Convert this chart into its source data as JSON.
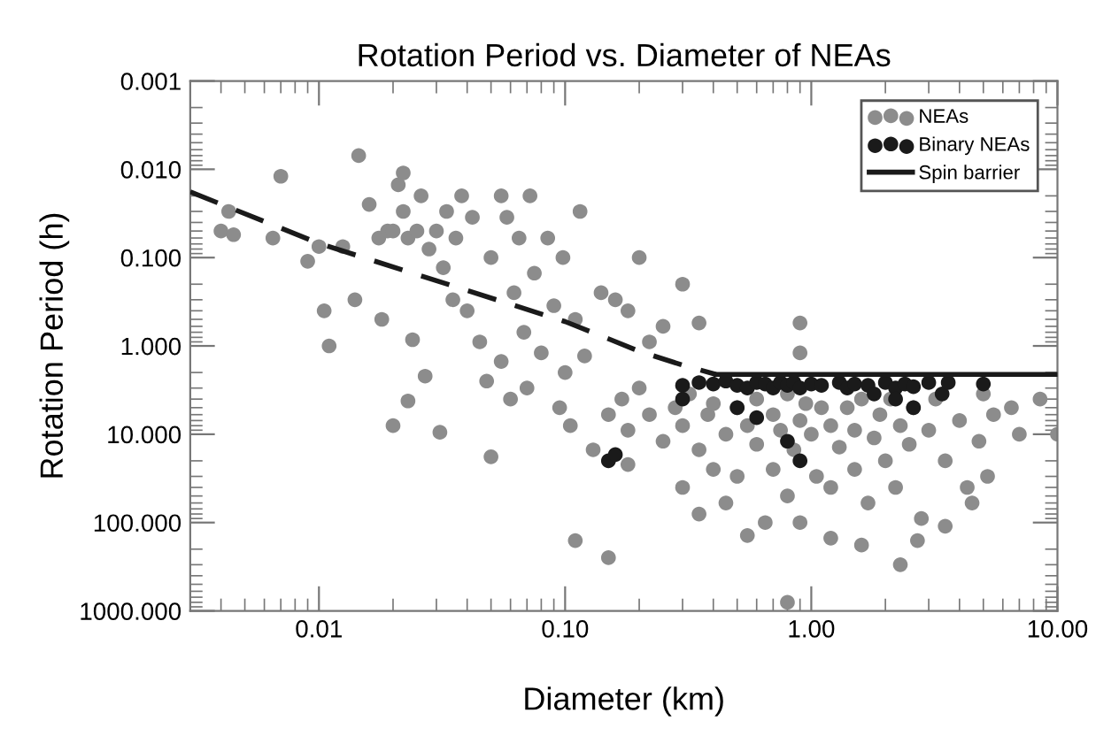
{
  "chart_data": {
    "type": "scatter",
    "title": "Rotation Period vs. Diameter of NEAs",
    "xlabel": "Diameter (km)",
    "ylabel": "Rotation Period (h)",
    "log": "xy",
    "xlim": [
      0.003,
      10
    ],
    "ylim": [
      1000,
      0.001
    ],
    "xticks": [
      {
        "value": 0.01,
        "label": "0.01"
      },
      {
        "value": 0.1,
        "label": "0.10"
      },
      {
        "value": 1,
        "label": "1.00"
      },
      {
        "value": 10,
        "label": "10.00"
      }
    ],
    "yticks": [
      {
        "value": 0.001,
        "label": "0.001"
      },
      {
        "value": 0.01,
        "label": "0.010"
      },
      {
        "value": 0.1,
        "label": "0.100"
      },
      {
        "value": 1,
        "label": "1.000"
      },
      {
        "value": 10,
        "label": "10.000"
      },
      {
        "value": 100,
        "label": "100.000"
      },
      {
        "value": 1000,
        "label": "1000.000"
      }
    ],
    "grid": false,
    "legend": "top right",
    "marker": "circle",
    "series": [
      {
        "name": "NEAs",
        "color": "#8c8c8c",
        "x": [
          0.004,
          0.0043,
          0.0045,
          0.0065,
          0.007,
          0.009,
          0.01,
          0.0105,
          0.011,
          0.0125,
          0.014,
          0.0145,
          0.016,
          0.0175,
          0.018,
          0.019,
          0.02,
          0.02,
          0.021,
          0.022,
          0.022,
          0.023,
          0.023,
          0.024,
          0.025,
          0.026,
          0.027,
          0.028,
          0.03,
          0.031,
          0.032,
          0.033,
          0.035,
          0.036,
          0.038,
          0.04,
          0.042,
          0.045,
          0.048,
          0.05,
          0.05,
          0.055,
          0.055,
          0.058,
          0.06,
          0.062,
          0.065,
          0.068,
          0.07,
          0.072,
          0.075,
          0.08,
          0.085,
          0.09,
          0.095,
          0.098,
          0.1,
          0.105,
          0.11,
          0.11,
          0.115,
          0.12,
          0.13,
          0.14,
          0.15,
          0.16,
          0.18,
          0.2,
          0.22,
          0.25,
          0.3,
          0.35,
          0.9,
          0.9,
          0.17,
          0.18,
          0.2,
          0.22,
          0.25,
          0.28,
          0.3,
          0.3,
          0.32,
          0.35,
          0.38,
          0.4,
          0.4,
          0.45,
          0.45,
          0.5,
          0.5,
          0.55,
          0.6,
          0.6,
          0.65,
          0.7,
          0.7,
          0.75,
          0.8,
          0.8,
          0.85,
          0.9,
          0.9,
          0.95,
          1.0,
          1.05,
          1.1,
          1.2,
          1.2,
          1.3,
          1.4,
          1.5,
          1.5,
          1.6,
          1.7,
          1.8,
          1.9,
          2.0,
          2.1,
          2.2,
          2.3,
          2.3,
          2.5,
          2.6,
          2.8,
          3.0,
          3.2,
          3.5,
          3.5,
          4.0,
          4.3,
          4.8,
          5.0,
          5.2,
          5.5,
          6.5,
          7.0,
          8.5,
          10,
          0.8,
          0.15,
          0.18,
          1.2,
          0.55,
          2.7,
          4.5,
          0.35,
          1.6
        ],
        "values": [
          0.05,
          0.03,
          0.055,
          0.06,
          0.012,
          0.11,
          0.075,
          0.4,
          1.0,
          0.075,
          0.3,
          0.007,
          0.025,
          0.06,
          0.5,
          0.05,
          0.05,
          8,
          0.015,
          0.011,
          0.03,
          0.06,
          4.2,
          0.85,
          0.05,
          0.02,
          2.2,
          0.08,
          0.05,
          9.5,
          0.13,
          0.03,
          0.3,
          0.06,
          0.02,
          0.4,
          0.035,
          0.9,
          2.5,
          18,
          0.1,
          0.02,
          1.5,
          0.035,
          4,
          0.25,
          0.06,
          0.7,
          3,
          0.02,
          0.15,
          1.2,
          0.06,
          0.35,
          5,
          0.1,
          2,
          8,
          0.5,
          160,
          0.03,
          1.3,
          15,
          0.25,
          6,
          0.3,
          0.4,
          0.1,
          0.9,
          0.6,
          0.2,
          0.55,
          0.55,
          1.2,
          4,
          9,
          3,
          6,
          12,
          5,
          40,
          8,
          3.5,
          15,
          6,
          25,
          4.5,
          10,
          60,
          5,
          30,
          8,
          4,
          13,
          100,
          6,
          25,
          9,
          3.5,
          50,
          15,
          7,
          100,
          4.5,
          10,
          30,
          5,
          8,
          40,
          14,
          5,
          25,
          9,
          4,
          60,
          11,
          6,
          20,
          4,
          40,
          8,
          300,
          13,
          5,
          90,
          9,
          4,
          20,
          110,
          7,
          40,
          12,
          3.5,
          30,
          6,
          5,
          10,
          4,
          10,
          800,
          250,
          22,
          150,
          140,
          160,
          60,
          80,
          180
        ]
      },
      {
        "name": "Binary NEAs",
        "color": "#1a1a1a",
        "x": [
          0.15,
          0.16,
          0.3,
          0.3,
          0.35,
          0.4,
          0.45,
          0.5,
          0.5,
          0.55,
          0.6,
          0.6,
          0.65,
          0.7,
          0.75,
          0.8,
          0.8,
          0.85,
          0.9,
          0.9,
          1.0,
          1.1,
          1.3,
          1.4,
          1.5,
          1.7,
          1.8,
          2.0,
          2.2,
          2.2,
          2.4,
          2.6,
          2.6,
          3.0,
          3.4,
          3.6,
          5.0
        ],
        "values": [
          20,
          17,
          2.8,
          4,
          2.6,
          2.7,
          2.5,
          2.8,
          5,
          3,
          2.6,
          6.5,
          2.7,
          3,
          2.6,
          2.8,
          12,
          2.6,
          3,
          20,
          2.7,
          2.8,
          2.6,
          3,
          2.7,
          2.8,
          3.5,
          2.6,
          3,
          4,
          2.7,
          2.9,
          5,
          2.6,
          3.5,
          2.6,
          2.7
        ]
      },
      {
        "color": "#1a1a1a",
        "type": "line",
        "line_style": "dashed",
        "marker": "none",
        "x": [
          0.003,
          0.01,
          0.1,
          0.15,
          0.2,
          0.3,
          0.41
        ],
        "values": [
          0.018,
          0.069,
          0.53,
          0.83,
          1.15,
          1.65,
          2.1
        ]
      },
      {
        "name": "Spin barrier",
        "color": "#1a1a1a",
        "type": "line",
        "line_style": "solid",
        "marker": "none",
        "x": [
          0.41,
          10
        ],
        "values": [
          2.1,
          2.1
        ]
      }
    ]
  }
}
